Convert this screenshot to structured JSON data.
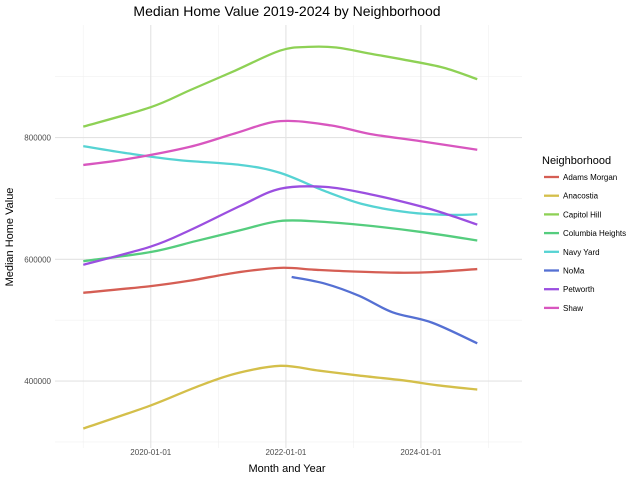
{
  "chart_data": {
    "type": "line",
    "title": "Median Home Value 2019-2024 by Neighborhood",
    "xlabel": "Month and Year",
    "ylabel": "Median Home Value",
    "x_ticks": [
      "2020-01-01",
      "2022-01-01",
      "2024-01-01"
    ],
    "y_ticks": [
      400000,
      600000,
      800000
    ],
    "y_tick_labels": [
      "400000",
      "600000",
      "800000"
    ],
    "xlim": [
      "2018-08-01",
      "2025-07-01"
    ],
    "ylim": [
      290000,
      985000
    ],
    "grid": true,
    "legend": {
      "title": "Neighborhood",
      "placement": "right"
    },
    "series": [
      {
        "name": "Adams Morgan",
        "color": "#D55E54",
        "points": [
          [
            "2019-01-01",
            545000
          ],
          [
            "2020-01-01",
            556000
          ],
          [
            "2020-08-01",
            565000
          ],
          [
            "2021-04-01",
            578000
          ],
          [
            "2021-12-01",
            586000
          ],
          [
            "2022-06-01",
            583000
          ],
          [
            "2023-01-01",
            580000
          ],
          [
            "2023-09-01",
            578000
          ],
          [
            "2024-03-01",
            579000
          ],
          [
            "2024-11-01",
            584000
          ]
        ]
      },
      {
        "name": "Anacostia",
        "color": "#D4BF4A",
        "points": [
          [
            "2019-01-01",
            322000
          ],
          [
            "2020-01-01",
            360000
          ],
          [
            "2020-09-01",
            390000
          ],
          [
            "2021-04-01",
            412000
          ],
          [
            "2021-12-01",
            425000
          ],
          [
            "2022-07-01",
            417000
          ],
          [
            "2023-02-01",
            409000
          ],
          [
            "2023-10-01",
            401000
          ],
          [
            "2024-04-01",
            393000
          ],
          [
            "2024-11-01",
            386000
          ]
        ]
      },
      {
        "name": "Capitol Hill",
        "color": "#8ED155",
        "points": [
          [
            "2019-01-01",
            818000
          ],
          [
            "2020-01-01",
            850000
          ],
          [
            "2020-08-01",
            878000
          ],
          [
            "2021-04-01",
            910000
          ],
          [
            "2021-12-01",
            943000
          ],
          [
            "2022-05-01",
            949000
          ],
          [
            "2022-10-01",
            948000
          ],
          [
            "2023-04-01",
            938000
          ],
          [
            "2023-10-01",
            928000
          ],
          [
            "2024-05-01",
            915000
          ],
          [
            "2024-11-01",
            896000
          ]
        ]
      },
      {
        "name": "Columbia Heights",
        "color": "#55CD7E",
        "points": [
          [
            "2019-01-01",
            597000
          ],
          [
            "2020-01-01",
            612000
          ],
          [
            "2020-09-01",
            630000
          ],
          [
            "2021-05-01",
            648000
          ],
          [
            "2021-12-01",
            663000
          ],
          [
            "2022-07-01",
            662000
          ],
          [
            "2023-03-01",
            656000
          ],
          [
            "2024-01-01",
            645000
          ],
          [
            "2024-11-01",
            631000
          ]
        ]
      },
      {
        "name": "Navy Yard",
        "color": "#56D3D3",
        "points": [
          [
            "2019-01-01",
            786000
          ],
          [
            "2019-09-01",
            774000
          ],
          [
            "2020-06-01",
            763000
          ],
          [
            "2021-05-01",
            755000
          ],
          [
            "2021-12-01",
            742000
          ],
          [
            "2022-08-01",
            712000
          ],
          [
            "2023-03-01",
            690000
          ],
          [
            "2023-11-01",
            677000
          ],
          [
            "2024-06-01",
            673000
          ],
          [
            "2024-11-01",
            674000
          ]
        ]
      },
      {
        "name": "NoMa",
        "color": "#5570D3",
        "points": [
          [
            "2022-02-01",
            571000
          ],
          [
            "2022-08-01",
            560000
          ],
          [
            "2023-02-01",
            540000
          ],
          [
            "2023-08-01",
            513000
          ],
          [
            "2024-03-01",
            496000
          ],
          [
            "2024-11-01",
            462000
          ]
        ]
      },
      {
        "name": "Petworth",
        "color": "#9B4FE0",
        "points": [
          [
            "2019-01-01",
            591000
          ],
          [
            "2020-01-01",
            621000
          ],
          [
            "2020-08-01",
            648000
          ],
          [
            "2021-05-01",
            688000
          ],
          [
            "2021-12-01",
            716000
          ],
          [
            "2022-08-01",
            719000
          ],
          [
            "2023-04-01",
            707000
          ],
          [
            "2024-01-01",
            687000
          ],
          [
            "2024-06-01",
            673000
          ],
          [
            "2024-11-01",
            657000
          ]
        ]
      },
      {
        "name": "Shaw",
        "color": "#D856BF",
        "points": [
          [
            "2019-01-01",
            755000
          ],
          [
            "2019-09-01",
            765000
          ],
          [
            "2020-08-01",
            785000
          ],
          [
            "2021-04-01",
            807000
          ],
          [
            "2021-12-01",
            827000
          ],
          [
            "2022-09-01",
            820000
          ],
          [
            "2023-04-01",
            806000
          ],
          [
            "2024-01-01",
            794000
          ],
          [
            "2024-11-01",
            780000
          ]
        ]
      }
    ]
  }
}
